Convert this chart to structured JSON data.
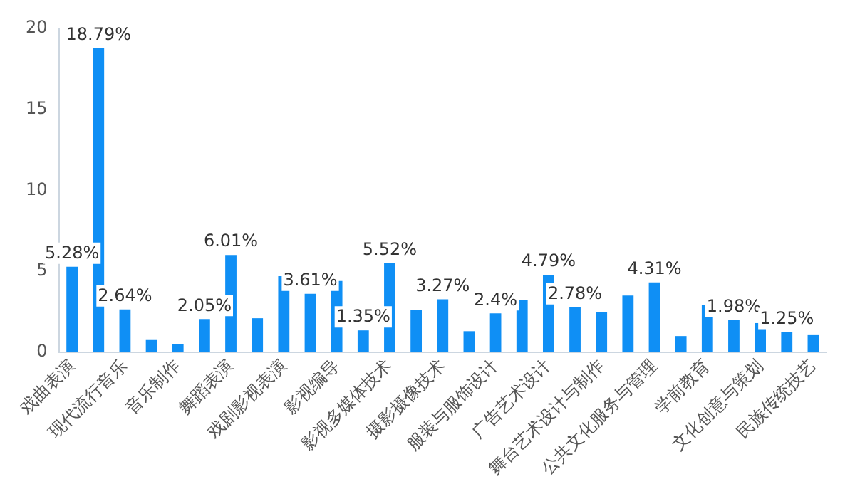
{
  "chart_data": {
    "type": "bar",
    "categories": [
      "戏曲表演",
      null,
      "现代流行音乐",
      null,
      "音乐制作",
      null,
      "舞蹈表演",
      null,
      "戏剧影视表演",
      null,
      "影视编导",
      null,
      "影视多媒体技术",
      null,
      "摄影摄像技术",
      null,
      "服装与服饰设计",
      null,
      "广告艺术设计",
      null,
      "舞台艺术设计与制作",
      null,
      "公共文化服务与管理",
      null,
      "学前教育",
      null,
      "文化创意与策划",
      null,
      "民族传统技艺"
    ],
    "values": [
      5.28,
      18.79,
      2.64,
      0.8,
      0.5,
      2.05,
      6.01,
      2.1,
      4.7,
      3.61,
      4.4,
      1.35,
      5.52,
      2.6,
      3.27,
      1.3,
      2.4,
      3.2,
      4.79,
      2.78,
      2.5,
      3.5,
      4.31,
      1,
      2.9,
      1.98,
      1.8,
      1.25,
      1.1
    ],
    "value_labels": [
      "5.28%",
      "18.79%",
      "2.64%",
      null,
      null,
      "2.05%",
      "6.01%",
      null,
      null,
      "3.61%",
      null,
      "1.35%",
      "5.52%",
      null,
      "3.27%",
      null,
      "2.4%",
      null,
      "4.79%",
      "2.78%",
      null,
      null,
      "4.31%",
      null,
      null,
      "1.98%",
      null,
      "1.25%",
      null
    ],
    "color": "#0f8ff5",
    "ylim": [
      0,
      20
    ],
    "yticks": [
      0,
      5,
      10,
      15,
      20
    ],
    "grid": false,
    "legend": false
  }
}
